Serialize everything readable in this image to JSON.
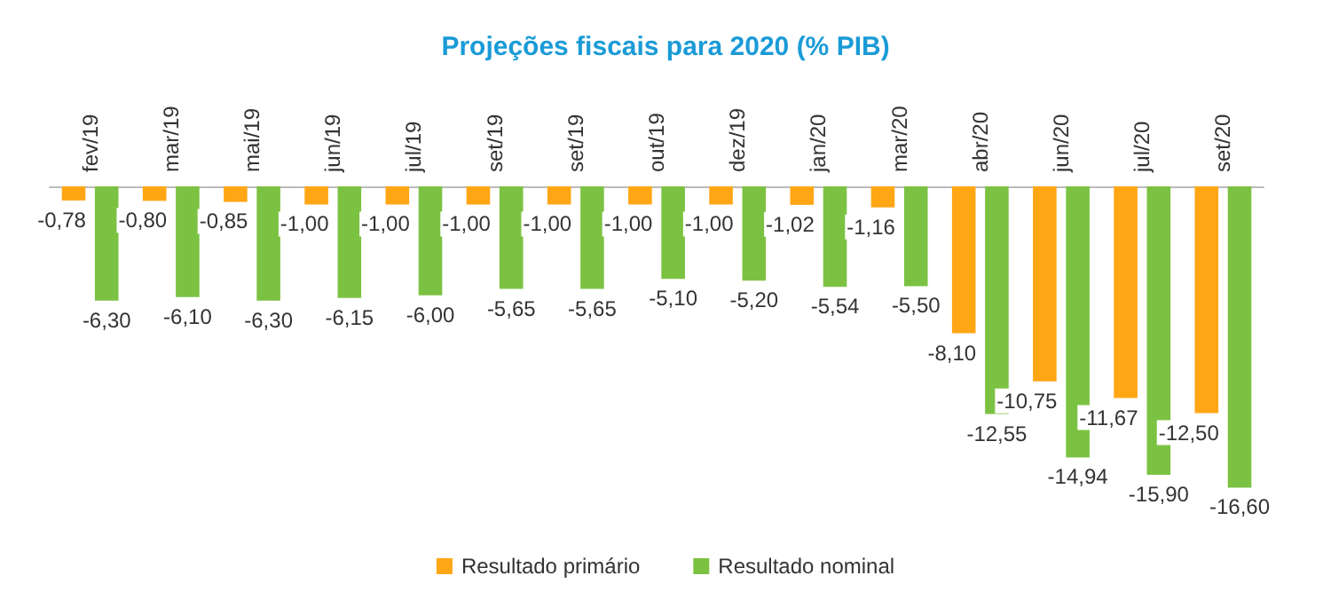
{
  "chart_data": {
    "type": "bar",
    "title": "Projeções fiscais para 2020 (% PIB)",
    "categories": [
      "fev/19",
      "mar/19",
      "mai/19",
      "jun/19",
      "jul/19",
      "set/19",
      "set/19",
      "out/19",
      "dez/19",
      "jan/20",
      "mar/20",
      "abr/20",
      "jun/20",
      "jul/20",
      "set/20"
    ],
    "series": [
      {
        "name": "Resultado primário",
        "color": "#ffa614",
        "values": [
          -0.78,
          -0.8,
          -0.85,
          -1,
          -1,
          -1,
          -1,
          -1,
          -1,
          -1.02,
          -1.16,
          -8.1,
          -10.75,
          -11.67,
          -12.5
        ],
        "value_labels": [
          "-0,78",
          "-0,80",
          "-0,85",
          "-1,00",
          "-1,00",
          "-1,00",
          "-1,00",
          "-1,00",
          "-1,00",
          "-1,02",
          "-1,16",
          "-8,10",
          "-10,75",
          "-11,67",
          "-12,50"
        ]
      },
      {
        "name": "Resultado nominal",
        "color": "#7cc242",
        "values": [
          -6.3,
          -6.1,
          -6.3,
          -6.15,
          -6,
          -5.65,
          -5.65,
          -5.1,
          -5.2,
          -5.54,
          -5.5,
          -12.55,
          -14.94,
          -15.9,
          -16.6
        ],
        "value_labels": [
          "-6,30",
          "-6,10",
          "-6,30",
          "-6,15",
          "-6,00",
          "-5,65",
          "-5,65",
          "-5,10",
          "-5,20",
          "-5,54",
          "-5,50",
          "-12,55",
          "-14,94",
          "-15,90",
          "-16,60"
        ]
      }
    ],
    "legend": "bottom",
    "grid": false,
    "tick_labels": "x"
  }
}
